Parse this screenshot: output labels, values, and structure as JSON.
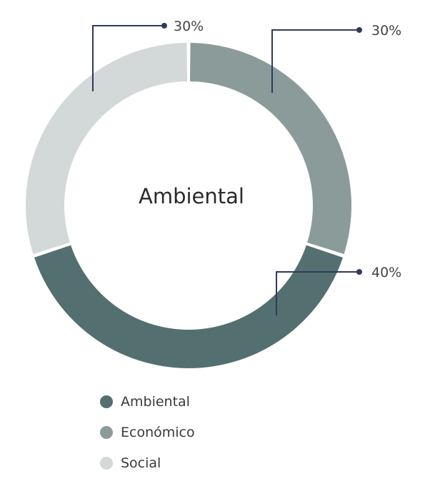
{
  "chart_data": {
    "type": "pie",
    "center_label": "Ambiental",
    "slices": [
      {
        "label": "Económico",
        "value": 30,
        "display": "30%",
        "color": "#8a9b99"
      },
      {
        "label": "Ambiental",
        "value": 40,
        "display": "40%",
        "color": "#546f70"
      },
      {
        "label": "Social",
        "value": 30,
        "display": "30%",
        "color": "#d3d8d9"
      }
    ],
    "legend": [
      {
        "label": "Ambiental",
        "color": "#546f70"
      },
      {
        "label": "Económico",
        "color": "#8a9b99"
      },
      {
        "label": "Social",
        "color": "#d3d8d9"
      }
    ],
    "callout_color": "#2f3a5c",
    "legend_position": "bottom"
  }
}
